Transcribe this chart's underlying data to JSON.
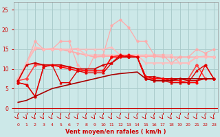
{
  "xlabel": "Vent moyen/en rafales ( km/h )",
  "background_color": "#cce8e8",
  "grid_color": "#aacccc",
  "x": [
    0,
    1,
    2,
    3,
    4,
    5,
    6,
    7,
    8,
    9,
    10,
    11,
    12,
    13,
    14,
    15,
    16,
    17,
    18,
    19,
    20,
    21,
    22,
    23
  ],
  "ylim": [
    -1,
    27
  ],
  "yticks": [
    0,
    5,
    10,
    15,
    20,
    25
  ],
  "series": [
    {
      "y": [
        7.5,
        11.5,
        15.2,
        15.0,
        15.0,
        15.0,
        14.5,
        14.0,
        13.5,
        13.0,
        13.2,
        13.2,
        13.2,
        13.2,
        13.2,
        13.2,
        13.2,
        13.0,
        13.0,
        13.0,
        13.0,
        13.0,
        13.2,
        13.0
      ],
      "color": "#ffaaaa",
      "lw": 1.2,
      "marker": "D",
      "ms": 2.0
    },
    {
      "y": [
        6.5,
        11.5,
        15.5,
        15.0,
        15.2,
        15.0,
        15.0,
        15.2,
        13.5,
        13.5,
        13.5,
        13.5,
        13.5,
        13.5,
        13.5,
        13.5,
        13.5,
        13.5,
        13.5,
        11.5,
        11.5,
        13.0,
        13.0,
        13.0
      ],
      "color": "#ffbbbb",
      "lw": 1.2,
      "marker": "s",
      "ms": 2.0
    },
    {
      "y": [
        6.5,
        11.5,
        17.0,
        15.0,
        15.0,
        17.0,
        17.0,
        11.0,
        9.0,
        13.5,
        13.5,
        21.0,
        22.5,
        20.5,
        17.0,
        17.0,
        13.5,
        13.5,
        11.5,
        13.0,
        13.0,
        15.0,
        14.0,
        15.0
      ],
      "color": "#ffaaaa",
      "lw": 0.9,
      "marker": "o",
      "ms": 2.0
    },
    {
      "y": [
        7.5,
        11.5,
        15.5,
        15.0,
        15.0,
        15.0,
        15.0,
        15.0,
        15.0,
        15.0,
        15.0,
        15.5,
        13.5,
        13.5,
        13.5,
        11.5,
        11.5,
        11.5,
        11.5,
        11.5,
        11.5,
        13.0,
        13.0,
        13.0
      ],
      "color": "#ffbbbb",
      "lw": 1.2,
      "marker": "^",
      "ms": 2.0
    },
    {
      "y": [
        7.0,
        7.5,
        11.0,
        11.0,
        11.0,
        10.5,
        10.5,
        10.0,
        9.5,
        9.5,
        9.5,
        13.0,
        13.5,
        13.0,
        13.0,
        7.5,
        7.5,
        7.5,
        7.5,
        7.5,
        7.5,
        11.0,
        7.5,
        7.5
      ],
      "color": "#ff4444",
      "lw": 1.2,
      "marker": "D",
      "ms": 2.0
    },
    {
      "y": [
        7.0,
        11.0,
        11.5,
        11.0,
        11.0,
        11.0,
        10.5,
        10.0,
        10.0,
        10.0,
        11.0,
        11.5,
        13.0,
        13.0,
        13.0,
        8.0,
        8.0,
        7.5,
        7.5,
        7.5,
        7.0,
        7.0,
        7.5,
        7.5
      ],
      "color": "#cc0000",
      "lw": 1.2,
      "marker": "s",
      "ms": 2.0
    },
    {
      "y": [
        6.5,
        6.0,
        3.0,
        10.5,
        11.0,
        10.5,
        10.0,
        9.5,
        9.5,
        9.5,
        9.5,
        13.0,
        13.0,
        13.5,
        13.0,
        8.0,
        7.5,
        7.5,
        7.0,
        7.0,
        6.5,
        6.5,
        11.0,
        7.5
      ],
      "color": "#ff0000",
      "lw": 1.0,
      "marker": "o",
      "ms": 2.0
    },
    {
      "y": [
        6.5,
        6.0,
        3.0,
        10.5,
        11.0,
        6.5,
        6.5,
        9.5,
        9.0,
        9.0,
        9.0,
        11.5,
        13.5,
        13.0,
        13.0,
        7.5,
        7.0,
        7.0,
        6.5,
        6.5,
        6.5,
        9.5,
        11.0,
        7.5
      ],
      "color": "#dd0000",
      "lw": 1.0,
      "marker": "^",
      "ms": 2.0
    },
    {
      "y": [
        1.5,
        2.0,
        3.0,
        4.0,
        5.0,
        5.5,
        6.0,
        6.5,
        7.0,
        7.5,
        8.0,
        8.5,
        8.8,
        9.0,
        9.2,
        7.5,
        7.0,
        7.0,
        7.0,
        7.5,
        7.5,
        7.5,
        7.5,
        7.5
      ],
      "color": "#aa0000",
      "lw": 1.2,
      "marker": null,
      "ms": 0
    }
  ]
}
